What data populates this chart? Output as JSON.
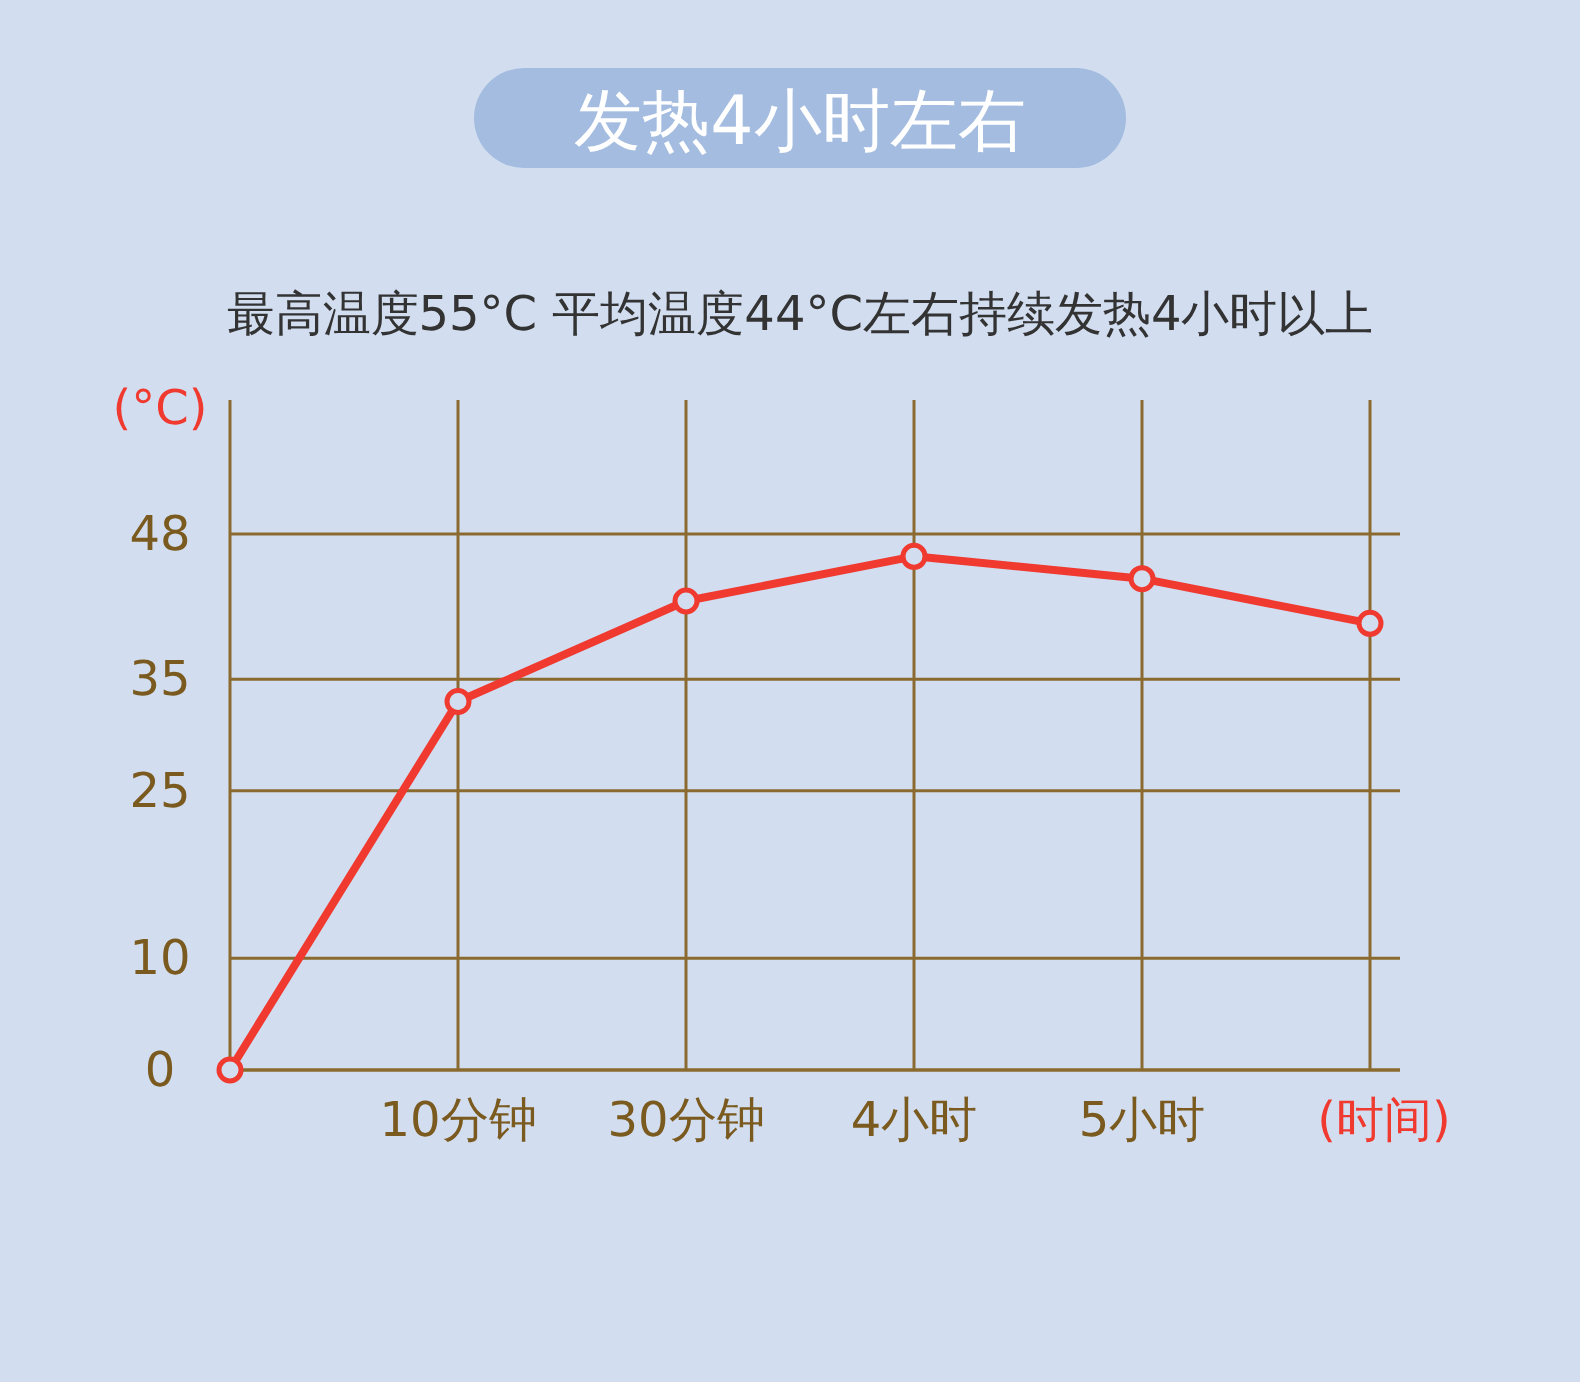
{
  "chart_data": {
    "type": "line",
    "title": "发热4小时左右",
    "subtitle": "最高温度55°C 平均温度44°C左右持续发热4小时以上",
    "xlabel": "(时间)",
    "ylabel": "(°C)",
    "categories": [
      null,
      "10分钟",
      "30分钟",
      "4小时",
      "5小时",
      null
    ],
    "series": [
      {
        "color": "#f03a30",
        "values": [
          0,
          33,
          42,
          46,
          44,
          40
        ]
      }
    ],
    "ylim": [
      0,
      60
    ],
    "yticks": [
      0,
      10,
      25,
      35,
      48
    ],
    "grid": true,
    "marker": "circle",
    "line_style": "solid"
  }
}
